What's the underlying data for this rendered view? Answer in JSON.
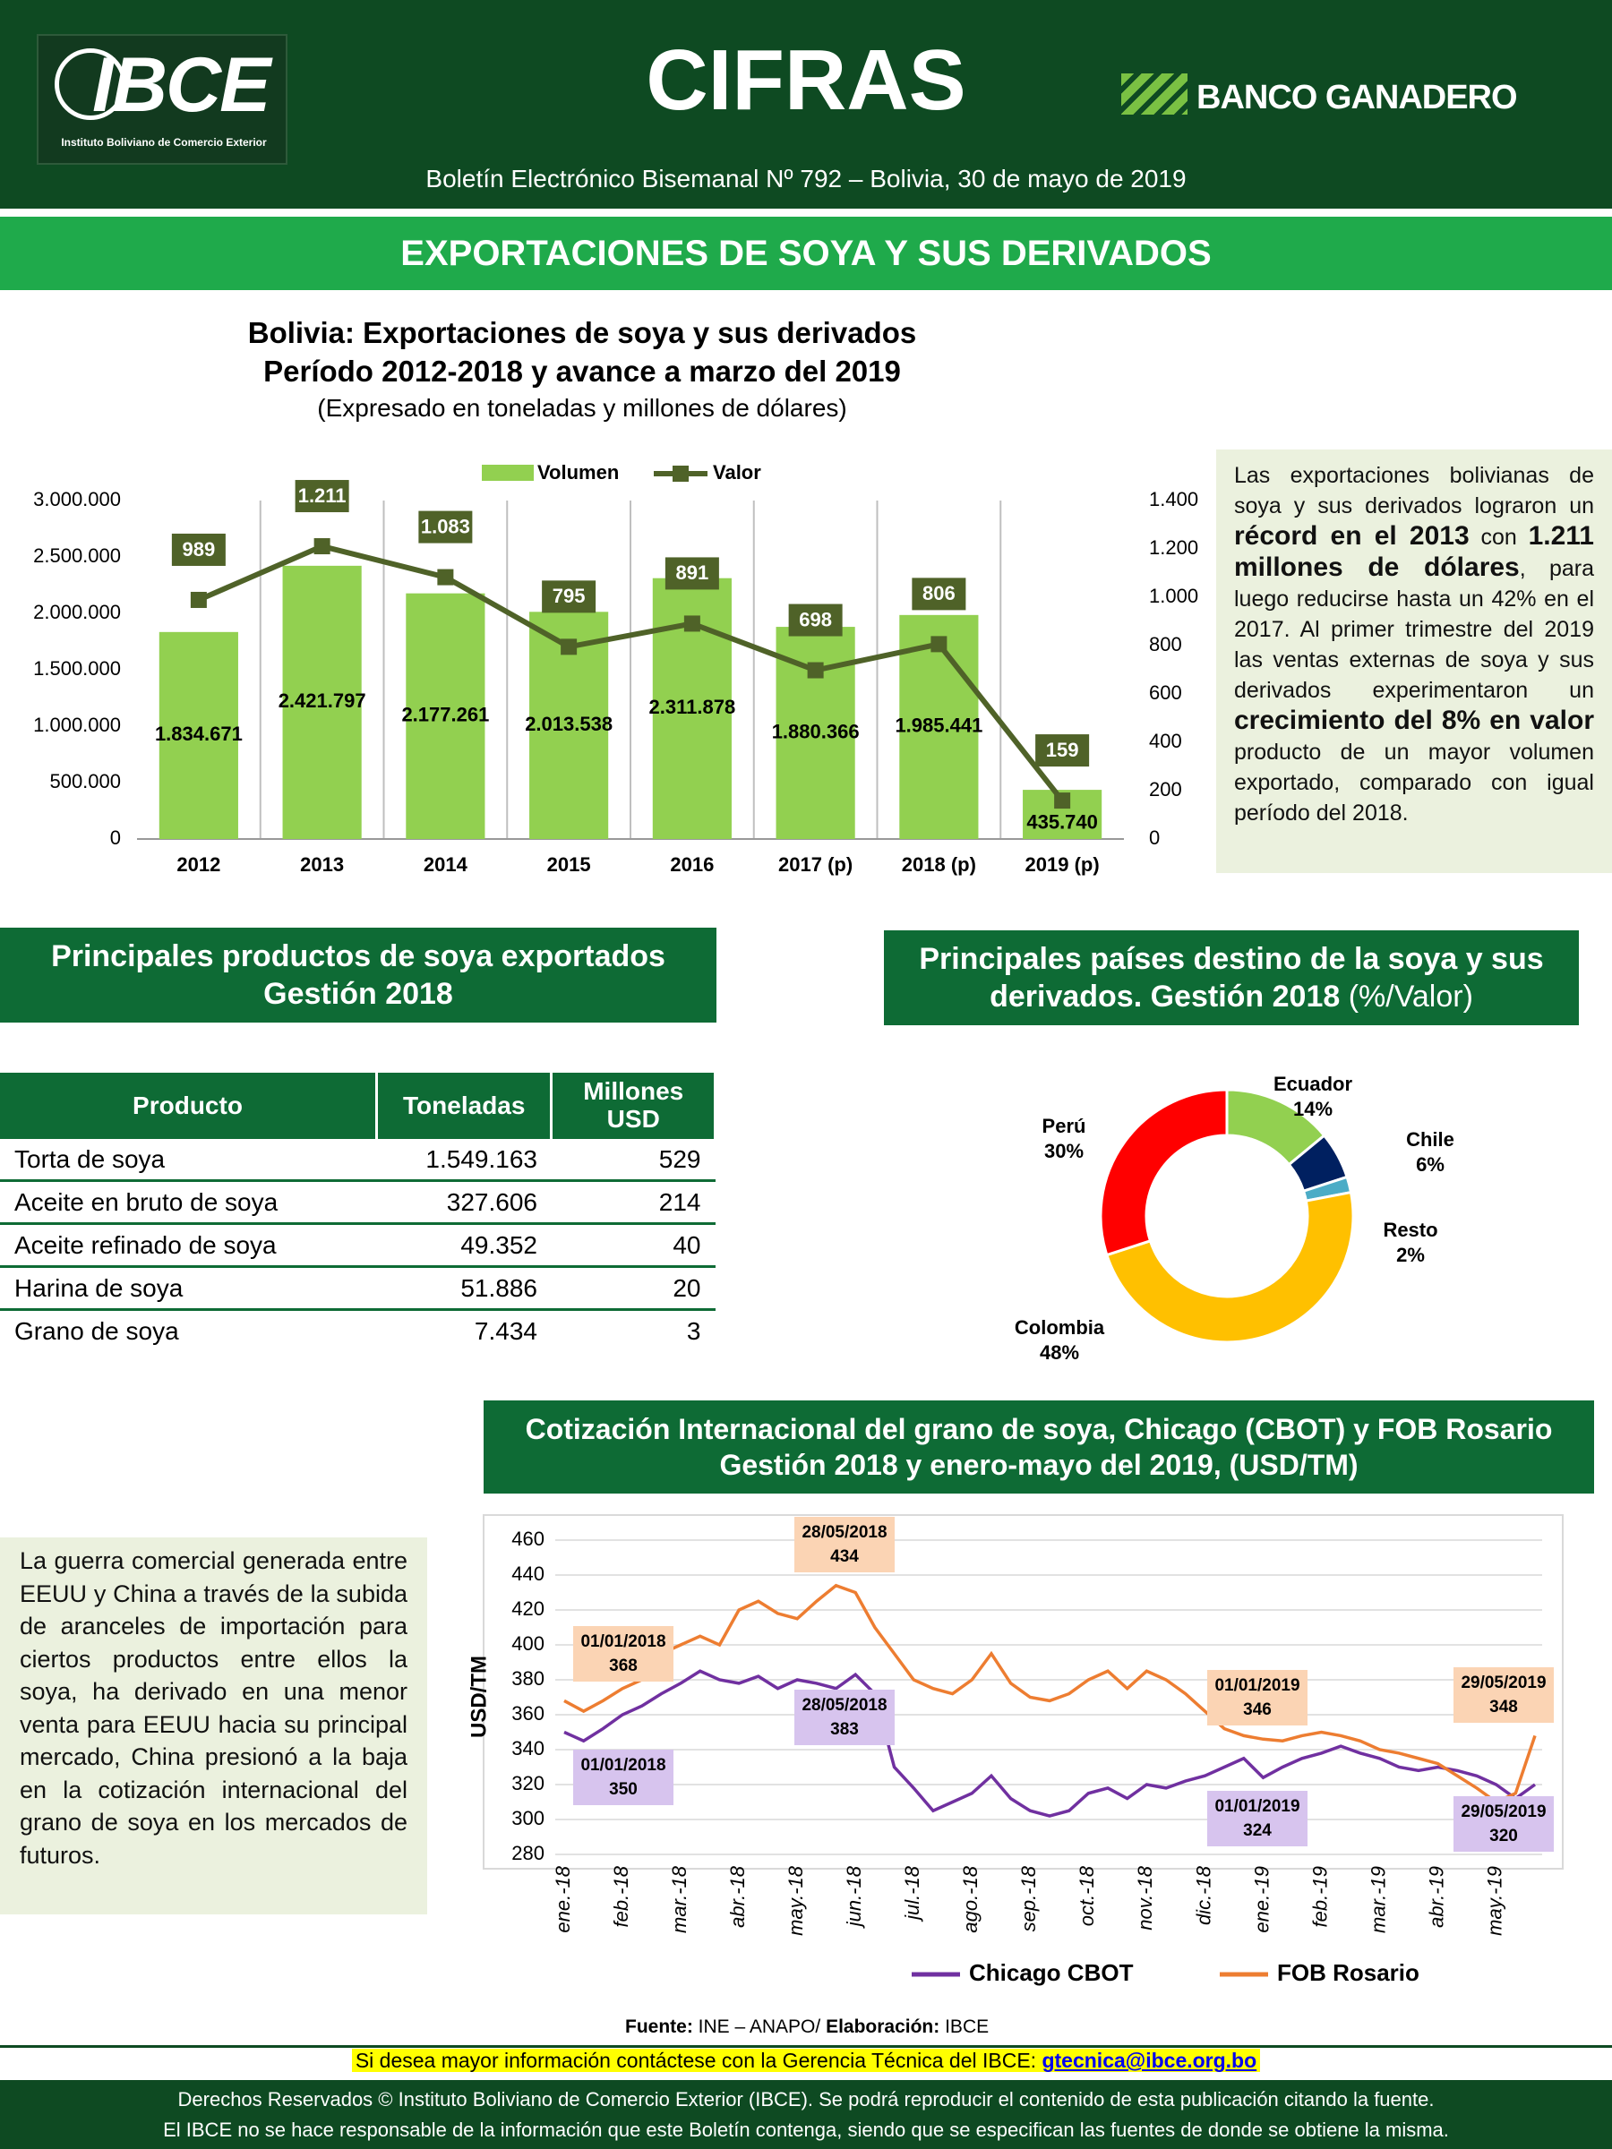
{
  "header": {
    "logo": "IBCE",
    "logo_subtitle": "Instituto Boliviano de Comercio Exterior",
    "title": "CIFRAS",
    "sponsor": "BANCO GANADERO",
    "subtitle": "Boletín Electrónico Bisemanal Nº 792 – Bolivia, 30 de mayo de 2019"
  },
  "banner": "EXPORTACIONES DE SOYA Y SUS DERIVADOS",
  "chart_data": [
    {
      "type": "bar-line",
      "title": [
        "Bolivia: Exportaciones de soya y sus derivados",
        "Período 2012-2018 y avance a marzo del 2019"
      ],
      "subtitle": "(Expresado en toneladas y millones de dólares)",
      "categories": [
        "2012",
        "2013",
        "2014",
        "2015",
        "2016",
        "2017 (p)",
        "2018 (p)",
        "2019 (p)"
      ],
      "series": [
        {
          "name": "Volumen",
          "color": "#92d050",
          "values": [
            1834671,
            2421797,
            2177261,
            2013538,
            2311878,
            1880366,
            1985441,
            435740
          ],
          "value_labels": [
            "1.834.671",
            "2.421.797",
            "2.177.261",
            "2.013.538",
            "2.311.878",
            "1.880.366",
            "1.985.441",
            "435.740"
          ]
        },
        {
          "name": "Valor",
          "color": "#4f6228",
          "axis": "y2",
          "values": [
            989,
            1211,
            1083,
            795,
            891,
            698,
            806,
            159
          ],
          "value_labels": [
            "989",
            "1.211",
            "1.083",
            "795",
            "891",
            "698",
            "806",
            "159"
          ]
        }
      ],
      "ylim": [
        0,
        3000000
      ],
      "yticks": [
        0,
        {
          "value": 500000,
          "label": "500.000"
        },
        {
          "value": 1000000,
          "label": "1.000.000"
        },
        {
          "value": 1500000,
          "label": "1.500.000"
        },
        {
          "value": 2000000,
          "label": "2.000.000"
        },
        {
          "value": 2500000,
          "label": "2.500.000"
        },
        {
          "value": 3000000,
          "label": "3.000.000"
        }
      ],
      "y2lim": [
        0,
        1400
      ],
      "y2ticks": [
        0,
        200,
        400,
        600,
        800,
        {
          "value": 1000,
          "label": "1.000"
        },
        {
          "value": 1200,
          "label": "1.200"
        },
        {
          "value": 1400,
          "label": "1.400"
        }
      ],
      "legend": "top"
    },
    {
      "type": "donut",
      "title": [
        "Principales países destino de la soya y sus",
        "derivados. Gestión 2018"
      ],
      "subtitle": "(%/Valor)",
      "categories": [
        "Ecuador",
        "Chile",
        "Resto",
        "Colombia",
        "Perú"
      ],
      "values": [
        14,
        6,
        2,
        48,
        30
      ],
      "value_labels": [
        "14%",
        "6%",
        "2%",
        "48%",
        "30%"
      ],
      "colors": [
        "#92d050",
        "#002060",
        "#4bacc6",
        "#ffc000",
        "#ff0000"
      ]
    },
    {
      "type": "line",
      "title": [
        "Cotización Internacional del grano de soya, Chicago (CBOT) y FOB Rosario",
        "Gestión 2018 y enero-mayo del 2019, (USD/TM)"
      ],
      "ylabel": "USD/TM",
      "x": [
        "ene.-18",
        null,
        null,
        "feb.-18",
        null,
        null,
        "mar.-18",
        null,
        null,
        "abr.-18",
        null,
        null,
        "may.-18",
        null,
        null,
        "jun.-18",
        null,
        null,
        "jul.-18",
        null,
        null,
        "ago.-18",
        null,
        null,
        "sep.-18",
        null,
        null,
        "oct.-18",
        null,
        null,
        "nov.-18",
        null,
        null,
        "dic.-18",
        null,
        null,
        "ene.-19",
        null,
        null,
        "feb.-19",
        null,
        null,
        "mar.-19",
        null,
        null,
        "abr.-19",
        null,
        null,
        "may.-19",
        null,
        null
      ],
      "series": [
        {
          "name": "Chicago CBOT",
          "color": "#7030a0",
          "values": [
            350,
            345,
            352,
            360,
            365,
            372,
            378,
            385,
            380,
            378,
            382,
            375,
            380,
            378,
            375,
            383,
            372,
            330,
            318,
            305,
            310,
            315,
            325,
            312,
            305,
            302,
            305,
            315,
            318,
            312,
            320,
            318,
            322,
            325,
            330,
            335,
            324,
            330,
            335,
            338,
            342,
            338,
            335,
            330,
            328,
            330,
            328,
            325,
            320,
            312,
            320
          ],
          "annotations": [
            {
              "date": "01/01/2018",
              "value": 350
            },
            {
              "date": "28/05/2018",
              "value": 383
            },
            {
              "date": "01/01/2019",
              "value": 324
            },
            {
              "date": "29/05/2019",
              "value": 320
            }
          ]
        },
        {
          "name": "FOB Rosario",
          "color": "#ed7d31",
          "values": [
            368,
            362,
            368,
            375,
            380,
            395,
            400,
            405,
            400,
            420,
            425,
            418,
            415,
            425,
            434,
            430,
            410,
            395,
            380,
            375,
            372,
            380,
            395,
            378,
            370,
            368,
            372,
            380,
            385,
            375,
            385,
            380,
            372,
            362,
            352,
            348,
            346,
            345,
            348,
            350,
            348,
            345,
            340,
            338,
            335,
            332,
            325,
            318,
            310,
            315,
            348
          ],
          "annotations": [
            {
              "date": "01/01/2018",
              "value": 368
            },
            {
              "date": "28/05/2018",
              "value": 434
            },
            {
              "date": "01/01/2019",
              "value": 346
            },
            {
              "date": "29/05/2019",
              "value": 348
            }
          ]
        }
      ],
      "ylim": [
        280,
        460
      ],
      "yticks": [
        280,
        300,
        320,
        340,
        360,
        380,
        400,
        420,
        440,
        460
      ],
      "grid": true,
      "legend": "bottom"
    }
  ],
  "summary": [
    "Las exportaciones bolivianas de soya y sus derivados lograron un ",
    "récord en el 2013",
    " con ",
    "1.211 millones de dólares",
    ", para luego reducirse hasta un 42% en el 2017. Al primer trimestre del 2019 las ventas externas de soya y sus derivados experimentaron un ",
    "crecimiento del 8% en valor",
    " producto de un mayor volumen exportado, comparado con igual período del 2018."
  ],
  "products_heading": [
    "Principales productos de soya exportados",
    "Gestión 2018"
  ],
  "table": {
    "columns": [
      "Producto",
      "Toneladas",
      "Millones USD"
    ],
    "rows": [
      [
        "Torta de soya",
        "1.549.163",
        "529"
      ],
      [
        "Aceite en bruto de soya",
        "327.606",
        "214"
      ],
      [
        "Aceite refinado de soya",
        "49.352",
        "40"
      ],
      [
        "Harina de soya",
        "51.886",
        "20"
      ],
      [
        "Grano de soya",
        "7.434",
        "3"
      ]
    ]
  },
  "war_text": "La guerra comercial generada entre EEUU y China a través de la subida de aranceles de importación para ciertos productos entre ellos la soya, ha derivado en una menor venta para EEUU hacia su principal mercado, China presionó a la baja en la cotización internacional del grano de soya en los mercados de futuros.",
  "source": [
    "Fuente:",
    " INE – ANAPO/ ",
    "Elaboración:",
    " IBCE"
  ],
  "contact": {
    "text": "Si desea mayor información contáctese con la Gerencia Técnica del IBCE:",
    "email": "gtecnica@ibce.org.bo"
  },
  "footer": [
    "Derechos Reservados © Instituto Boliviano de Comercio Exterior (IBCE). Se podrá reproducir el contenido de esta publicación citando la fuente.",
    "El IBCE no se hace responsable de la información que este Boletín contenga, siendo que se especifican las fuentes de donde se obtiene la misma."
  ]
}
